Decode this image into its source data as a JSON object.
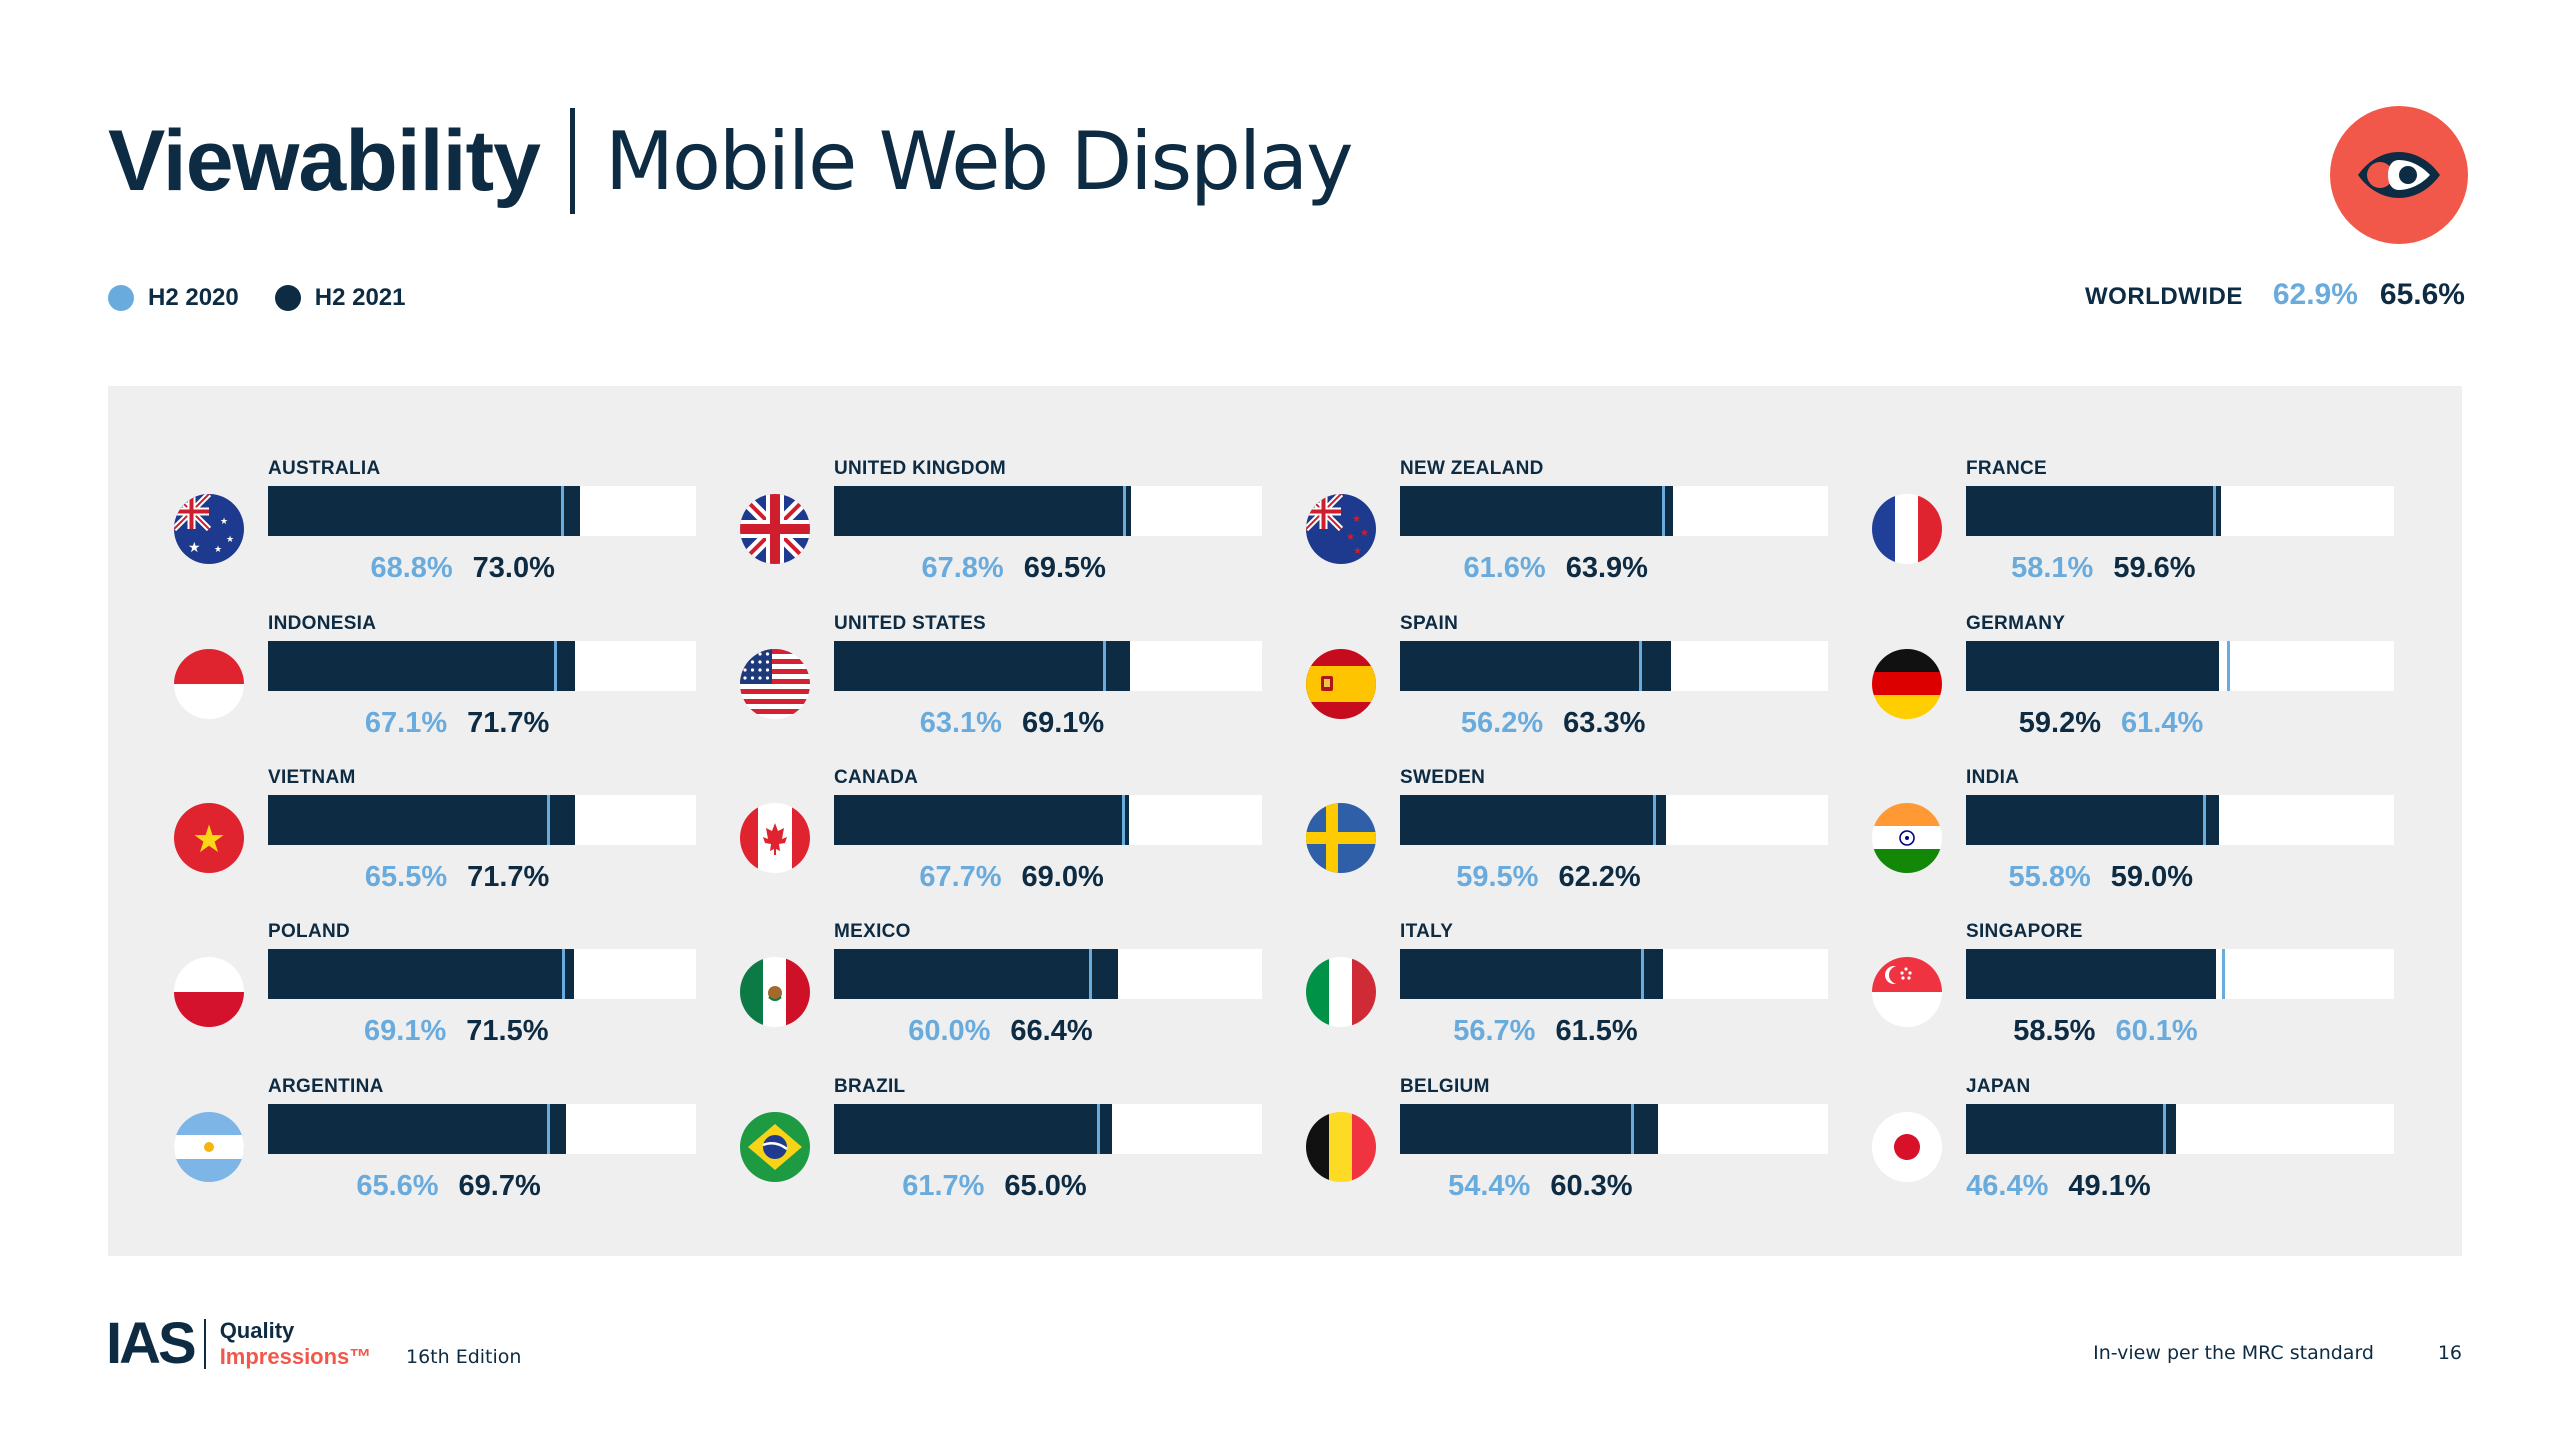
{
  "title": {
    "bold": "Viewability",
    "light": "Mobile Web Display"
  },
  "legend": {
    "series1": {
      "label": "H2 2020",
      "color": "#6aabdd"
    },
    "series2": {
      "label": "H2 2021",
      "color": "#0d2b42"
    }
  },
  "worldwide": {
    "label": "WORLDWIDE",
    "h2_2020": "62.9%",
    "h2_2021": "65.6%"
  },
  "colors": {
    "accent": "#f2584a",
    "dark": "#0d2b42",
    "light": "#6aabdd",
    "panel": "#efefef"
  },
  "logo_icon": "eye-icon",
  "chart_data": {
    "type": "bar",
    "title": "Viewability | Mobile Web Display",
    "xlim": [
      0,
      100
    ],
    "series": [
      {
        "name": "H2 2020"
      },
      {
        "name": "H2 2021"
      }
    ],
    "countries": [
      {
        "name": "AUSTRALIA",
        "h2_2020": 68.8,
        "h2_2021": 73.0,
        "label_2020": "68.8%",
        "label_2021": "73.0%",
        "flag": "australia-flag-icon"
      },
      {
        "name": "INDONESIA",
        "h2_2020": 67.1,
        "h2_2021": 71.7,
        "label_2020": "67.1%",
        "label_2021": "71.7%",
        "flag": "indonesia-flag-icon"
      },
      {
        "name": "VIETNAM",
        "h2_2020": 65.5,
        "h2_2021": 71.7,
        "label_2020": "65.5%",
        "label_2021": "71.7%",
        "flag": "vietnam-flag-icon"
      },
      {
        "name": "POLAND",
        "h2_2020": 69.1,
        "h2_2021": 71.5,
        "label_2020": "69.1%",
        "label_2021": "71.5%",
        "flag": "poland-flag-icon"
      },
      {
        "name": "ARGENTINA",
        "h2_2020": 65.6,
        "h2_2021": 69.7,
        "label_2020": "65.6%",
        "label_2021": "69.7%",
        "flag": "argentina-flag-icon"
      },
      {
        "name": "UNITED KINGDOM",
        "h2_2020": 67.8,
        "h2_2021": 69.5,
        "label_2020": "67.8%",
        "label_2021": "69.5%",
        "flag": "uk-flag-icon"
      },
      {
        "name": "UNITED STATES",
        "h2_2020": 63.1,
        "h2_2021": 69.1,
        "label_2020": "63.1%",
        "label_2021": "69.1%",
        "flag": "usa-flag-icon"
      },
      {
        "name": "CANADA",
        "h2_2020": 67.7,
        "h2_2021": 69.0,
        "label_2020": "67.7%",
        "label_2021": "69.0%",
        "flag": "canada-flag-icon"
      },
      {
        "name": "MEXICO",
        "h2_2020": 60.0,
        "h2_2021": 66.4,
        "label_2020": "60.0%",
        "label_2021": "66.4%",
        "flag": "mexico-flag-icon"
      },
      {
        "name": "BRAZIL",
        "h2_2020": 61.7,
        "h2_2021": 65.0,
        "label_2020": "61.7%",
        "label_2021": "65.0%",
        "flag": "brazil-flag-icon"
      },
      {
        "name": "NEW ZEALAND",
        "h2_2020": 61.6,
        "h2_2021": 63.9,
        "label_2020": "61.6%",
        "label_2021": "63.9%",
        "flag": "new-zealand-flag-icon"
      },
      {
        "name": "SPAIN",
        "h2_2020": 56.2,
        "h2_2021": 63.3,
        "label_2020": "56.2%",
        "label_2021": "63.3%",
        "flag": "spain-flag-icon"
      },
      {
        "name": "SWEDEN",
        "h2_2020": 59.5,
        "h2_2021": 62.2,
        "label_2020": "59.5%",
        "label_2021": "62.2%",
        "flag": "sweden-flag-icon"
      },
      {
        "name": "ITALY",
        "h2_2020": 56.7,
        "h2_2021": 61.5,
        "label_2020": "56.7%",
        "label_2021": "61.5%",
        "flag": "italy-flag-icon"
      },
      {
        "name": "BELGIUM",
        "h2_2020": 54.4,
        "h2_2021": 60.3,
        "label_2020": "54.4%",
        "label_2021": "60.3%",
        "flag": "belgium-flag-icon"
      },
      {
        "name": "FRANCE",
        "h2_2020": 58.1,
        "h2_2021": 59.6,
        "label_2020": "58.1%",
        "label_2021": "59.6%",
        "flag": "france-flag-icon"
      },
      {
        "name": "GERMANY",
        "h2_2020": 61.4,
        "h2_2021": 59.2,
        "label_2020": "61.4%",
        "label_2021": "59.2%",
        "flag": "germany-flag-icon"
      },
      {
        "name": "INDIA",
        "h2_2020": 55.8,
        "h2_2021": 59.0,
        "label_2020": "55.8%",
        "label_2021": "59.0%",
        "flag": "india-flag-icon"
      },
      {
        "name": "SINGAPORE",
        "h2_2020": 60.1,
        "h2_2021": 58.5,
        "label_2020": "60.1%",
        "label_2021": "58.5%",
        "flag": "singapore-flag-icon"
      },
      {
        "name": "JAPAN",
        "h2_2020": 46.4,
        "h2_2021": 49.1,
        "label_2020": "46.4%",
        "label_2021": "49.1%",
        "flag": "japan-flag-icon"
      }
    ]
  },
  "footer": {
    "brand": "IAS",
    "brand_line1": "Quality",
    "brand_line2": "Impressions™",
    "edition": "16th Edition",
    "note": "In-view per the MRC standard",
    "page": "16"
  }
}
